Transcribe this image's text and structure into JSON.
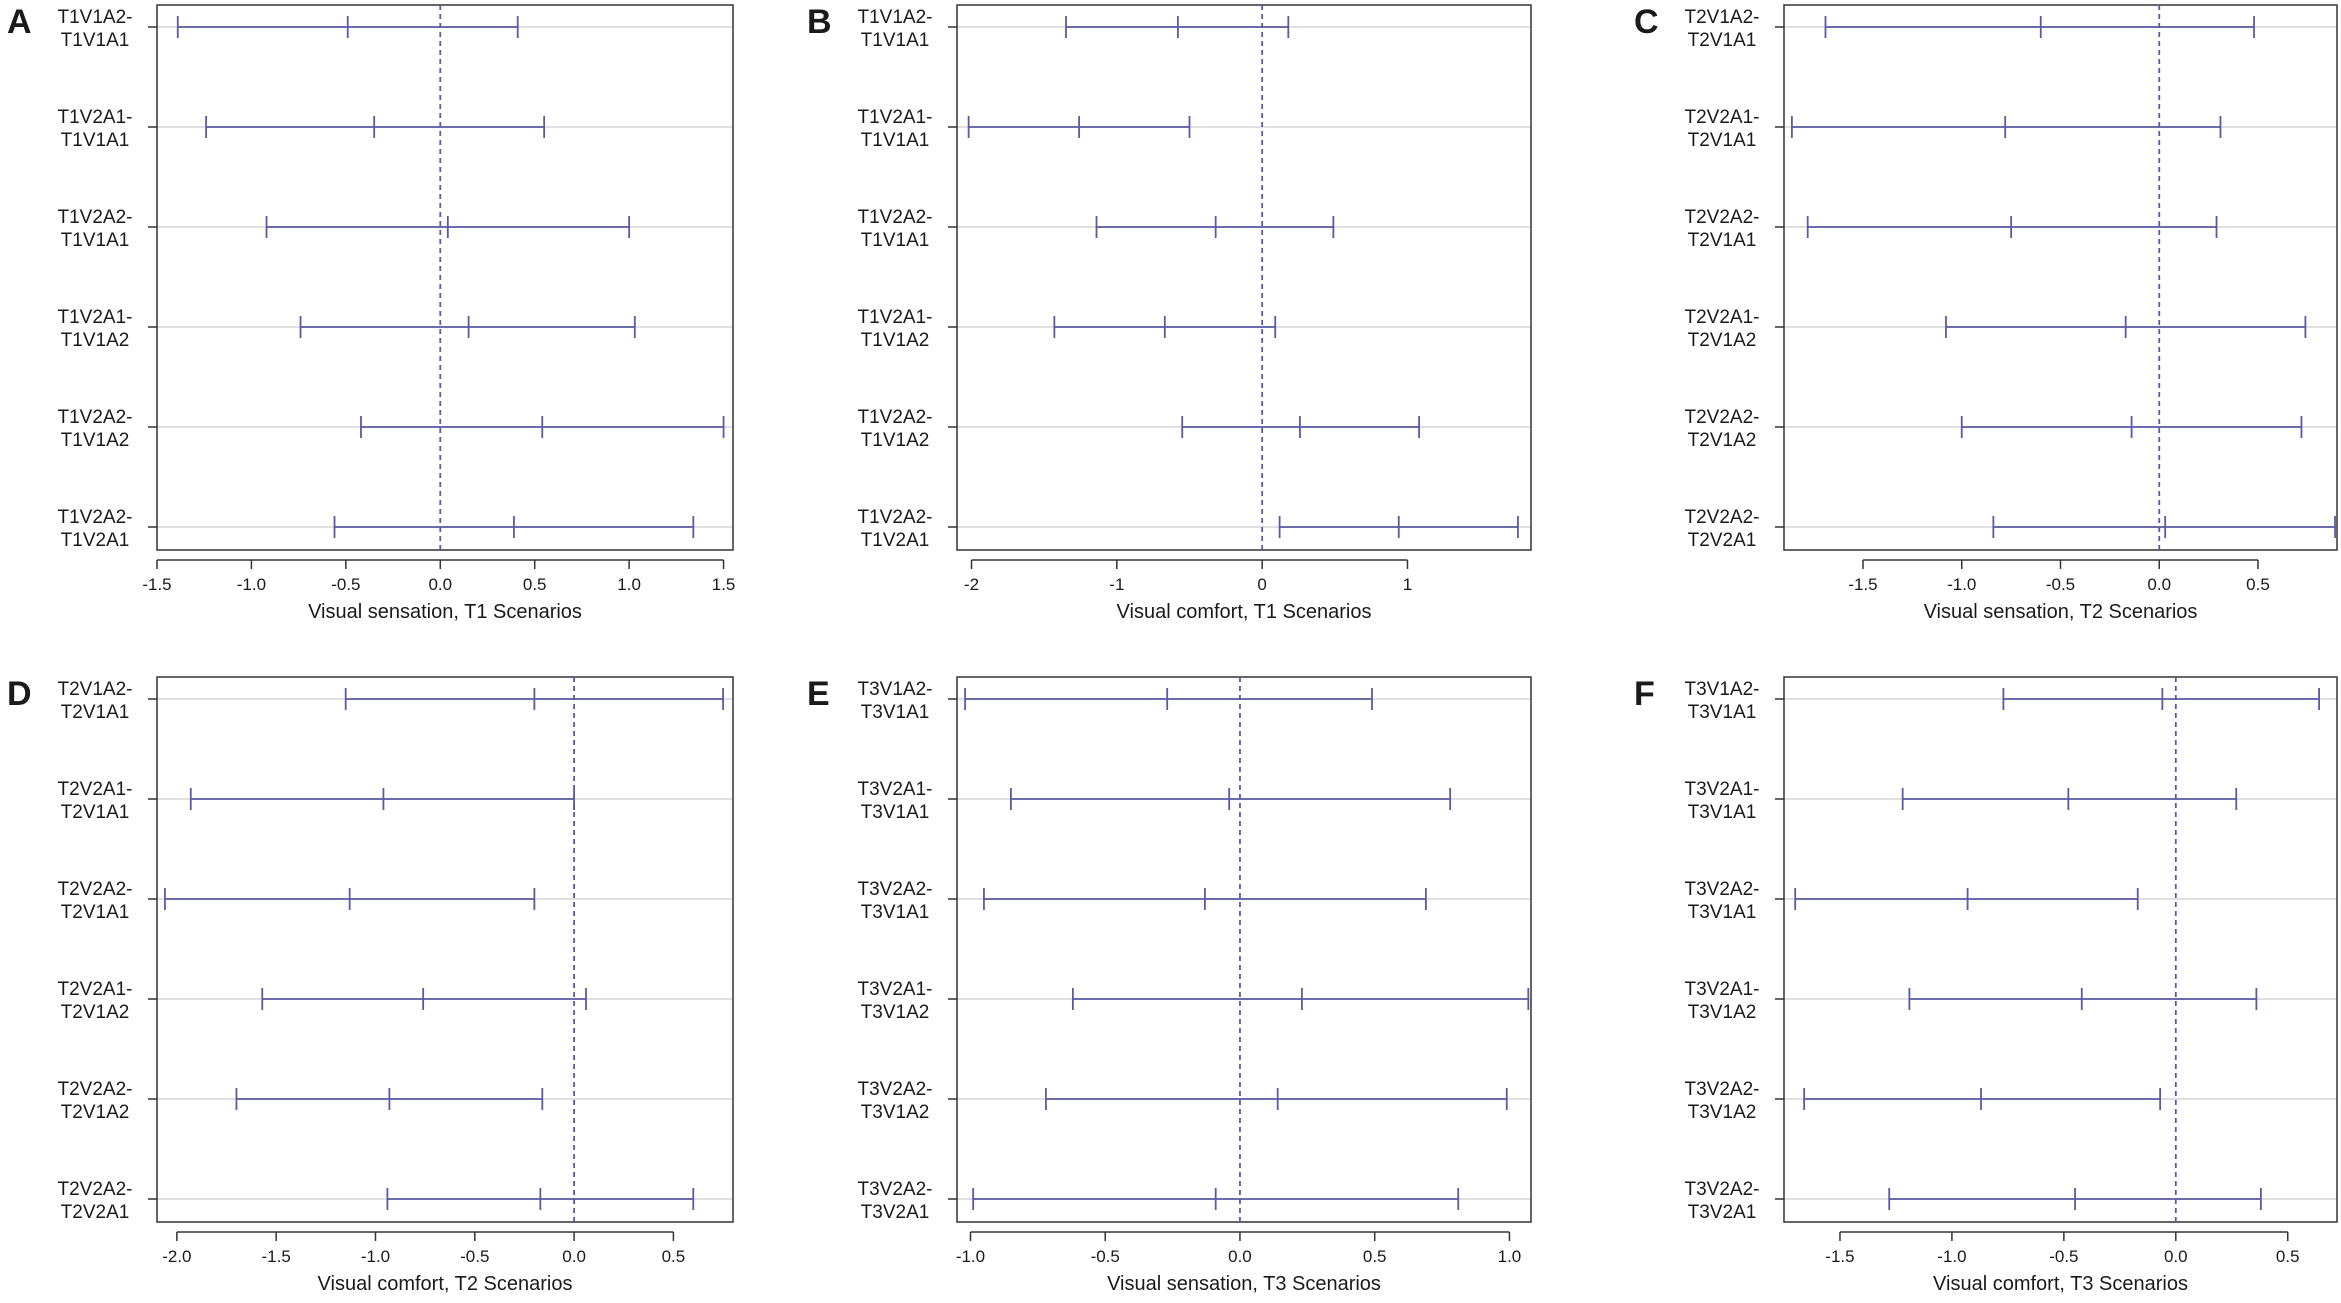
{
  "figure": {
    "series_color": "#5a5aa0",
    "zero_line_color": "#5a5aa0",
    "grid_color": "#d6d6d6",
    "frame_color": "#333333"
  },
  "chart_data": [
    {
      "type": "interval",
      "panel": "A",
      "xlabel": "Visual sensation, T1 Scenarios",
      "xlim": [
        -1.5,
        1.55
      ],
      "ticks": [
        -1.5,
        -1.0,
        -0.5,
        0.0,
        0.5,
        1.0,
        1.5
      ],
      "tick_labels": [
        "-1.5",
        "-1.0",
        "-0.5",
        "0.0",
        "0.5",
        "1.0",
        "1.5"
      ],
      "rows": [
        {
          "label_top": "T1V1A2-",
          "label_bottom": "T1V1A1",
          "lwr": -1.39,
          "est": -0.49,
          "upr": 0.41
        },
        {
          "label_top": "T1V2A1-",
          "label_bottom": "T1V1A1",
          "lwr": -1.24,
          "est": -0.35,
          "upr": 0.55
        },
        {
          "label_top": "T1V2A2-",
          "label_bottom": "T1V1A1",
          "lwr": -0.92,
          "est": 0.04,
          "upr": 1.0
        },
        {
          "label_top": "T1V2A1-",
          "label_bottom": "T1V1A2",
          "lwr": -0.74,
          "est": 0.15,
          "upr": 1.03
        },
        {
          "label_top": "T1V2A2-",
          "label_bottom": "T1V1A2",
          "lwr": -0.42,
          "est": 0.54,
          "upr": 1.5
        },
        {
          "label_top": "T1V2A2-",
          "label_bottom": "T1V2A1",
          "lwr": -0.56,
          "est": 0.39,
          "upr": 1.34
        }
      ]
    },
    {
      "type": "interval",
      "panel": "B",
      "xlabel": "Visual comfort, T1 Scenarios",
      "xlim": [
        -2.1,
        1.85
      ],
      "ticks": [
        -2,
        -1,
        0,
        1
      ],
      "tick_labels": [
        "-2",
        "-1",
        "0",
        "1"
      ],
      "rows": [
        {
          "label_top": "T1V1A2-",
          "label_bottom": "T1V1A1",
          "lwr": -1.35,
          "est": -0.58,
          "upr": 0.18
        },
        {
          "label_top": "T1V2A1-",
          "label_bottom": "T1V1A1",
          "lwr": -2.02,
          "est": -1.26,
          "upr": -0.5
        },
        {
          "label_top": "T1V2A2-",
          "label_bottom": "T1V1A1",
          "lwr": -1.14,
          "est": -0.32,
          "upr": 0.49
        },
        {
          "label_top": "T1V2A1-",
          "label_bottom": "T1V1A2",
          "lwr": -1.43,
          "est": -0.67,
          "upr": 0.09
        },
        {
          "label_top": "T1V2A2-",
          "label_bottom": "T1V1A2",
          "lwr": -0.55,
          "est": 0.26,
          "upr": 1.08
        },
        {
          "label_top": "T1V2A2-",
          "label_bottom": "T1V2A1",
          "lwr": 0.12,
          "est": 0.94,
          "upr": 1.76
        }
      ]
    },
    {
      "type": "interval",
      "panel": "C",
      "xlabel": "Visual sensation, T2 Scenarios",
      "xlim": [
        -1.9,
        0.9
      ],
      "ticks": [
        -1.5,
        -1.0,
        -0.5,
        0.0,
        0.5
      ],
      "tick_labels": [
        "-1.5",
        "-1.0",
        "-0.5",
        "0.0",
        "0.5"
      ],
      "rows": [
        {
          "label_top": "T2V1A2-",
          "label_bottom": "T2V1A1",
          "lwr": -1.69,
          "est": -0.6,
          "upr": 0.48
        },
        {
          "label_top": "T2V2A1-",
          "label_bottom": "T2V1A1",
          "lwr": -1.86,
          "est": -0.78,
          "upr": 0.31
        },
        {
          "label_top": "T2V2A2-",
          "label_bottom": "T2V1A1",
          "lwr": -1.78,
          "est": -0.75,
          "upr": 0.29
        },
        {
          "label_top": "T2V2A1-",
          "label_bottom": "T2V1A2",
          "lwr": -1.08,
          "est": -0.17,
          "upr": 0.74
        },
        {
          "label_top": "T2V2A2-",
          "label_bottom": "T2V1A2",
          "lwr": -1.0,
          "est": -0.14,
          "upr": 0.72
        },
        {
          "label_top": "T2V2A2-",
          "label_bottom": "T2V2A1",
          "lwr": -0.84,
          "est": 0.03,
          "upr": 0.89
        }
      ]
    },
    {
      "type": "interval",
      "panel": "D",
      "xlabel": "Visual comfort, T2 Scenarios",
      "xlim": [
        -2.1,
        0.8
      ],
      "ticks": [
        -2.0,
        -1.5,
        -1.0,
        -0.5,
        0.0,
        0.5
      ],
      "tick_labels": [
        "-2.0",
        "-1.5",
        "-1.0",
        "-0.5",
        "0.0",
        "0.5"
      ],
      "rows": [
        {
          "label_top": "T2V1A2-",
          "label_bottom": "T2V1A1",
          "lwr": -1.15,
          "est": -0.2,
          "upr": 0.75
        },
        {
          "label_top": "T2V2A1-",
          "label_bottom": "T2V1A1",
          "lwr": -1.93,
          "est": -0.96,
          "upr": 0.0
        },
        {
          "label_top": "T2V2A2-",
          "label_bottom": "T2V1A1",
          "lwr": -2.06,
          "est": -1.13,
          "upr": -0.2
        },
        {
          "label_top": "T2V2A1-",
          "label_bottom": "T2V1A2",
          "lwr": -1.57,
          "est": -0.76,
          "upr": 0.06
        },
        {
          "label_top": "T2V2A2-",
          "label_bottom": "T2V1A2",
          "lwr": -1.7,
          "est": -0.93,
          "upr": -0.16
        },
        {
          "label_top": "T2V2A2-",
          "label_bottom": "T2V2A1",
          "lwr": -0.94,
          "est": -0.17,
          "upr": 0.6
        }
      ]
    },
    {
      "type": "interval",
      "panel": "E",
      "xlabel": "Visual sensation, T3 Scenarios",
      "xlim": [
        -1.05,
        1.08
      ],
      "ticks": [
        -1.0,
        -0.5,
        0.0,
        0.5,
        1.0
      ],
      "tick_labels": [
        "-1.0",
        "-0.5",
        "0.0",
        "0.5",
        "1.0"
      ],
      "rows": [
        {
          "label_top": "T3V1A2-",
          "label_bottom": "T3V1A1",
          "lwr": -1.02,
          "est": -0.27,
          "upr": 0.49
        },
        {
          "label_top": "T3V2A1-",
          "label_bottom": "T3V1A1",
          "lwr": -0.85,
          "est": -0.04,
          "upr": 0.78
        },
        {
          "label_top": "T3V2A2-",
          "label_bottom": "T3V1A1",
          "lwr": -0.95,
          "est": -0.13,
          "upr": 0.69
        },
        {
          "label_top": "T3V2A1-",
          "label_bottom": "T3V1A2",
          "lwr": -0.62,
          "est": 0.23,
          "upr": 1.07
        },
        {
          "label_top": "T3V2A2-",
          "label_bottom": "T3V1A2",
          "lwr": -0.72,
          "est": 0.14,
          "upr": 0.99
        },
        {
          "label_top": "T3V2A2-",
          "label_bottom": "T3V2A1",
          "lwr": -0.99,
          "est": -0.09,
          "upr": 0.81
        }
      ]
    },
    {
      "type": "interval",
      "panel": "F",
      "xlabel": "Visual comfort, T3 Scenarios",
      "xlim": [
        -1.75,
        0.72
      ],
      "ticks": [
        -1.5,
        -1.0,
        -0.5,
        0.0,
        0.5
      ],
      "tick_labels": [
        "-1.5",
        "-1.0",
        "-0.5",
        "0.0",
        "0.5"
      ],
      "rows": [
        {
          "label_top": "T3V1A2-",
          "label_bottom": "T3V1A1",
          "lwr": -0.77,
          "est": -0.06,
          "upr": 0.64
        },
        {
          "label_top": "T3V2A1-",
          "label_bottom": "T3V1A1",
          "lwr": -1.22,
          "est": -0.48,
          "upr": 0.27
        },
        {
          "label_top": "T3V2A2-",
          "label_bottom": "T3V1A1",
          "lwr": -1.7,
          "est": -0.93,
          "upr": -0.17
        },
        {
          "label_top": "T3V2A1-",
          "label_bottom": "T3V1A2",
          "lwr": -1.19,
          "est": -0.42,
          "upr": 0.36
        },
        {
          "label_top": "T3V2A2-",
          "label_bottom": "T3V1A2",
          "lwr": -1.66,
          "est": -0.87,
          "upr": -0.07
        },
        {
          "label_top": "T3V2A2-",
          "label_bottom": "T3V2A1",
          "lwr": -1.28,
          "est": -0.45,
          "upr": 0.38
        }
      ]
    }
  ]
}
